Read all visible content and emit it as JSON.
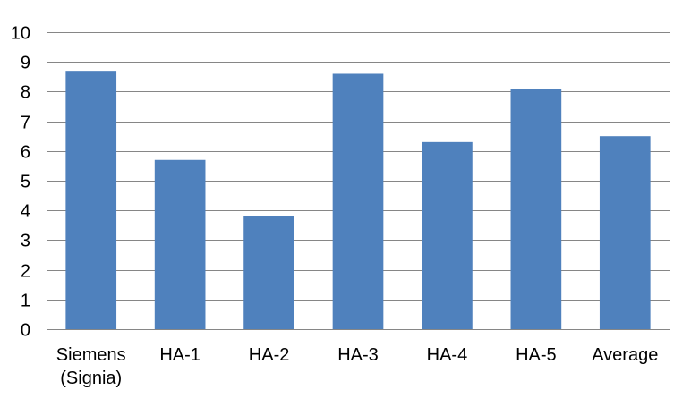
{
  "chart_data": {
    "type": "bar",
    "categories": [
      [
        "Siemens",
        "(Signia)"
      ],
      [
        "HA-1"
      ],
      [
        "HA-2"
      ],
      [
        "HA-3"
      ],
      [
        "HA-4"
      ],
      [
        "HA-5"
      ],
      [
        "Average"
      ]
    ],
    "values": [
      8.7,
      5.7,
      3.8,
      8.6,
      6.3,
      8.1,
      6.5
    ],
    "ylim": [
      0,
      10
    ],
    "yticks": [
      "0",
      "1",
      "2",
      "3",
      "4",
      "5",
      "6",
      "7",
      "8",
      "9",
      "10"
    ],
    "grid": true,
    "legend": "none",
    "colors": {
      "bar": "#4F81BD",
      "grid": "#868686",
      "axis": "#868686",
      "text": "#000000"
    }
  }
}
